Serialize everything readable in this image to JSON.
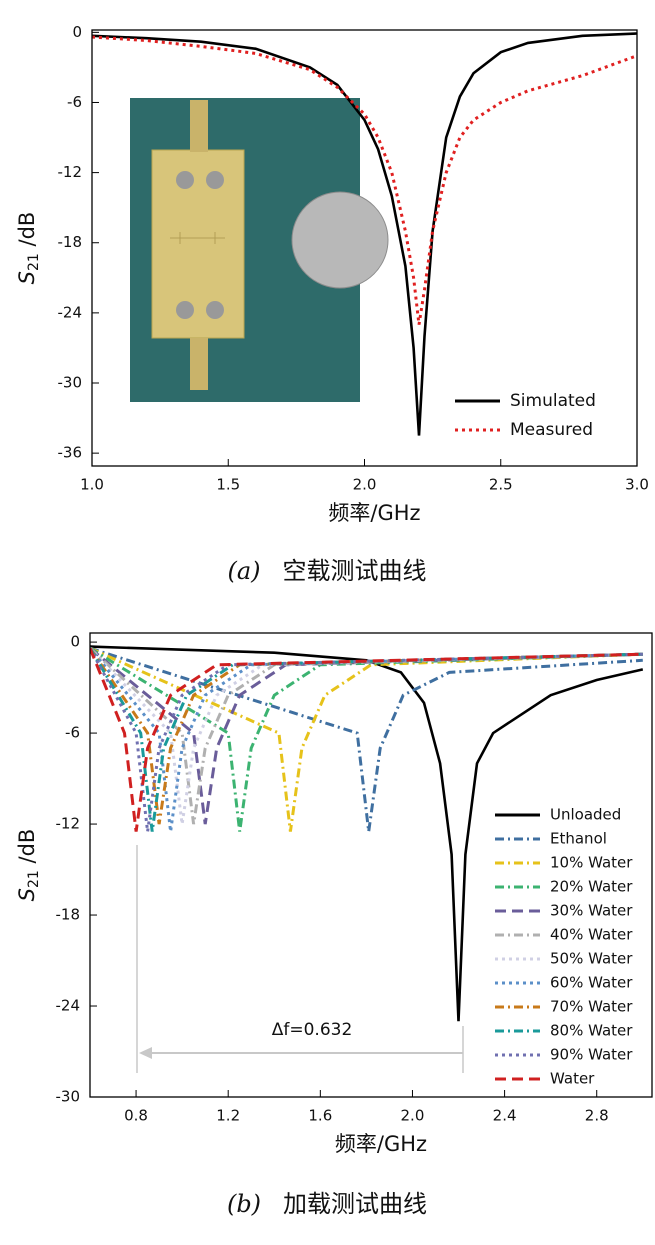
{
  "chart_data": [
    {
      "type": "line",
      "xlabel": "频率/GHz",
      "ylabel": [
        "S",
        "21",
        " /dB"
      ],
      "caption": [
        "(a)",
        "空载测试曲线"
      ],
      "xlim": [
        1.0,
        3.0
      ],
      "xticks": [
        {
          "value": 1.0,
          "label": "1.0"
        },
        1.5,
        {
          "value": 2.0,
          "label": "2.0"
        },
        2.5,
        {
          "value": 3.0,
          "label": "3.0"
        }
      ],
      "ylim": [
        -37.1,
        0.2
      ],
      "yticks": [
        0,
        -6,
        -12,
        -18,
        -24,
        -30,
        -36
      ],
      "legend": "lower right",
      "x": [
        1.0,
        1.2,
        1.4,
        1.6,
        1.8,
        1.9,
        2.0,
        2.05,
        2.1,
        2.15,
        2.18,
        2.2,
        2.22,
        2.25,
        2.3,
        2.35,
        2.4,
        2.5,
        2.6,
        2.8,
        3.0
      ],
      "series": [
        {
          "name": "Simulated",
          "color": "#000000",
          "dash": "solid",
          "values": [
            -0.3,
            -0.5,
            -0.8,
            -1.4,
            -3,
            -4.5,
            -7.5,
            -10,
            -14,
            -20,
            -27,
            -34.5,
            -26,
            -17,
            -9,
            -5.5,
            -3.5,
            -1.7,
            -0.9,
            -0.3,
            -0.1
          ]
        },
        {
          "name": "Measured",
          "color": "#e02020",
          "dash": "dotted",
          "values": [
            -0.4,
            -0.7,
            -1.2,
            -1.8,
            -3.2,
            -4.7,
            -7,
            -9,
            -12,
            -17,
            -21,
            -25,
            -22,
            -17,
            -12,
            -9,
            -7.5,
            -6,
            -5,
            -3.7,
            -2
          ]
        }
      ]
    },
    {
      "type": "line",
      "xlabel": "频率/GHz",
      "ylabel": [
        "S",
        "21",
        " /dB"
      ],
      "caption": [
        "(b)",
        "加载测试曲线"
      ],
      "annotation": "Δf=0.632",
      "xlim": [
        0.6,
        3.04
      ],
      "xticks": [
        0.8,
        1.2,
        1.6,
        {
          "value": 2.0,
          "label": "2.0"
        },
        2.4,
        2.8
      ],
      "ylim": [
        -30,
        0.6
      ],
      "yticks": [
        0,
        -6,
        -12,
        -18,
        -24,
        -30
      ],
      "legend": "right",
      "series": [
        {
          "name": "Unloaded",
          "color": "#000000",
          "dash": "solid",
          "x": [
            0.6,
            1.0,
            1.4,
            1.8,
            1.95,
            2.05,
            2.12,
            2.17,
            2.2,
            2.23,
            2.28,
            2.35,
            2.45,
            2.6,
            2.8,
            3.0
          ],
          "values": [
            -0.3,
            -0.5,
            -0.7,
            -1.2,
            -2,
            -4,
            -8,
            -14,
            -25,
            -14,
            -8,
            -6,
            -5,
            -3.5,
            -2.5,
            -1.8
          ]
        },
        {
          "name": "Ethanol",
          "color": "#3f6fa0",
          "dash": "dash-dot",
          "x": [
            0.6,
            1.76,
            1.81,
            1.86,
            1.96,
            2.16,
            3.0
          ],
          "values": [
            -0.4,
            -6,
            -12.5,
            -7,
            -3.5,
            -2,
            -1.2
          ]
        },
        {
          "name": "10% Water",
          "color": "#e6c21a",
          "dash": "dash-dot",
          "x": [
            0.6,
            1.42,
            1.47,
            1.52,
            1.62,
            1.82,
            3.0
          ],
          "values": [
            -0.4,
            -6,
            -12.5,
            -7,
            -3.5,
            -1.5,
            -0.8
          ]
        },
        {
          "name": "20% Water",
          "color": "#3cb371",
          "dash": "dash-dot",
          "x": [
            0.6,
            1.2,
            1.25,
            1.3,
            1.4,
            1.6,
            3.0
          ],
          "values": [
            -0.4,
            -6,
            -12.5,
            -7,
            -3.5,
            -1.5,
            -0.8
          ]
        },
        {
          "name": "30% Water",
          "color": "#6a5d9a",
          "dash": "dash",
          "x": [
            0.6,
            1.05,
            1.1,
            1.15,
            1.25,
            1.45,
            3.0
          ],
          "values": [
            -0.4,
            -6,
            -12,
            -7,
            -3.5,
            -1.5,
            -0.8
          ]
        },
        {
          "name": "40% Water",
          "color": "#b0b0b0",
          "dash": "dash-dot",
          "x": [
            0.6,
            1.0,
            1.05,
            1.1,
            1.2,
            1.4,
            3.0
          ],
          "values": [
            -0.4,
            -6,
            -12,
            -7,
            -3.5,
            -1.5,
            -0.8
          ]
        },
        {
          "name": "50% Water",
          "color": "#d0d0e4",
          "dash": "dotted",
          "x": [
            0.6,
            0.95,
            1.0,
            1.05,
            1.15,
            1.35,
            3.0
          ],
          "values": [
            -0.4,
            -6,
            -12,
            -7,
            -3.5,
            -1.5,
            -0.8
          ]
        },
        {
          "name": "60% Water",
          "color": "#5b8fc8",
          "dash": "dotted",
          "x": [
            0.6,
            0.9,
            0.95,
            1.0,
            1.1,
            1.3,
            3.0
          ],
          "values": [
            -0.4,
            -6,
            -12.5,
            -7,
            -3.5,
            -1.5,
            -0.8
          ]
        },
        {
          "name": "70% Water",
          "color": "#c87a1a",
          "dash": "dash-dot",
          "x": [
            0.6,
            0.85,
            0.9,
            0.95,
            1.05,
            1.25,
            3.0
          ],
          "values": [
            -0.4,
            -6,
            -12,
            -7,
            -3.5,
            -1.5,
            -0.8
          ]
        },
        {
          "name": "80% Water",
          "color": "#1a9a9a",
          "dash": "dash-dot",
          "x": [
            0.6,
            0.82,
            0.87,
            0.92,
            1.02,
            1.22,
            3.0
          ],
          "values": [
            -0.4,
            -6,
            -12.5,
            -7,
            -3.5,
            -1.5,
            -0.8
          ]
        },
        {
          "name": "90% Water",
          "color": "#7070b0",
          "dash": "dotted",
          "x": [
            0.6,
            0.8,
            0.85,
            0.9,
            1.0,
            1.2,
            3.0
          ],
          "values": [
            -0.4,
            -6,
            -12.5,
            -7,
            -3.5,
            -1.5,
            -0.8
          ]
        },
        {
          "name": "Water",
          "color": "#d02020",
          "dash": "dash",
          "x": [
            0.6,
            0.75,
            0.8,
            0.85,
            0.95,
            1.15,
            3.0
          ],
          "values": [
            -0.4,
            -6,
            -12.5,
            -7,
            -3.5,
            -1.5,
            -0.8
          ]
        }
      ]
    }
  ]
}
